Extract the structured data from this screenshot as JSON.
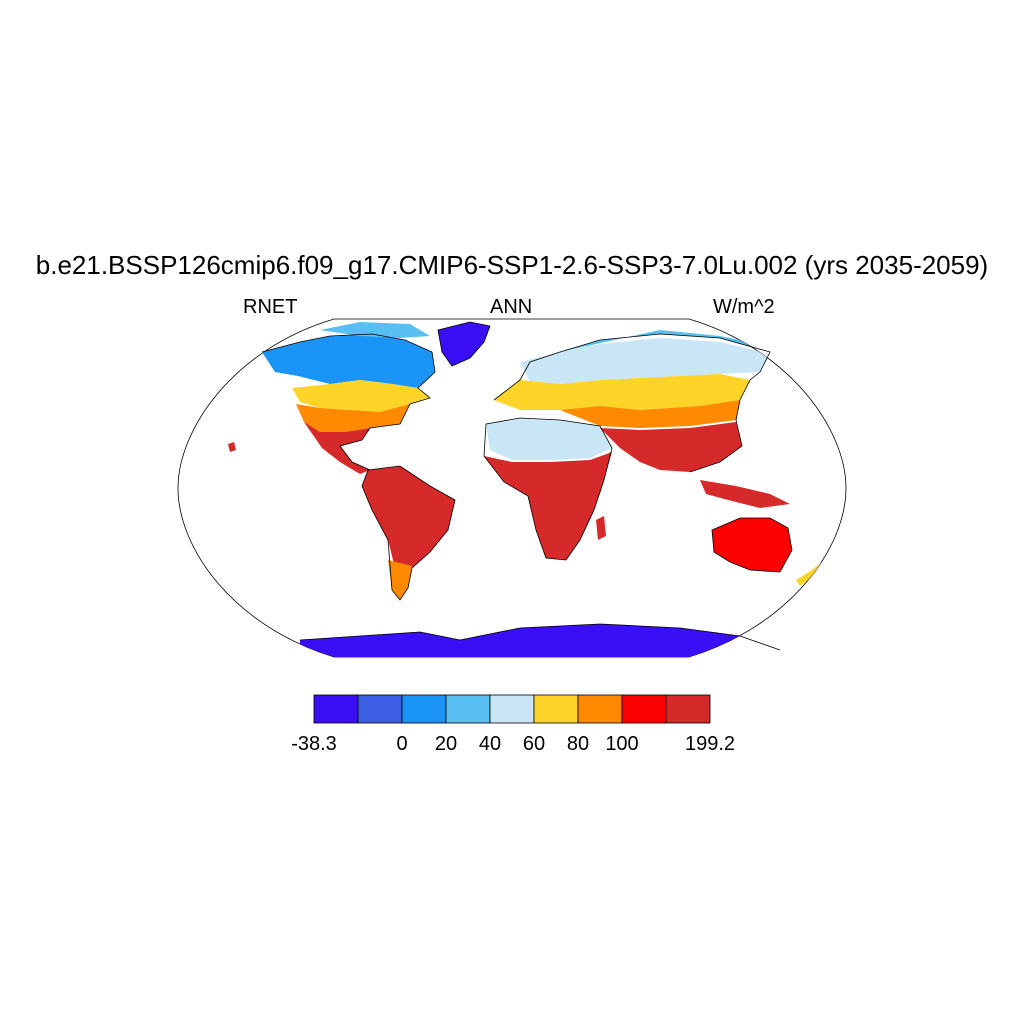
{
  "title": "b.e21.BSSP126cmip6.f09_g17.CMIP6-SSP1-2.6-SSP3-7.0Lu.002 (yrs 2035-2059)",
  "variable": "RNET",
  "season": "ANN",
  "units": "W/m^2",
  "colorbar": {
    "colors": [
      "#3a0ff5",
      "#3c5fe6",
      "#1b94f7",
      "#58bff2",
      "#c9e6f7",
      "#ffd428",
      "#ff8a00",
      "#fd0000",
      "#d62a2a"
    ],
    "tick_labels": [
      "-38.3",
      "0",
      "20",
      "40",
      "60",
      "80",
      "100",
      "199.2"
    ],
    "levels": [
      -38.3,
      0,
      20,
      40,
      60,
      80,
      100,
      199.2
    ]
  },
  "map": {
    "projection": "Robinson",
    "fields": [
      {
        "region": "Greenland",
        "color": "#3a0ff5"
      },
      {
        "region": "Antarctica",
        "color": "#3a0ff5"
      },
      {
        "region": "North America high latitudes",
        "color": "#58bff2"
      },
      {
        "region": "North America mid latitudes",
        "color": "#ffd428"
      },
      {
        "region": "North America southeast",
        "color": "#ff8a00"
      },
      {
        "region": "Central America",
        "color": "#d62a2a"
      },
      {
        "region": "South America",
        "color": "#d62a2a"
      },
      {
        "region": "Patagonia",
        "color": "#ff8a00"
      },
      {
        "region": "Europe",
        "color": "#ffd428"
      },
      {
        "region": "Northern Eurasia",
        "color": "#c9e6f7"
      },
      {
        "region": "Sahara",
        "color": "#c9e6f7"
      },
      {
        "region": "Africa",
        "color": "#d62a2a"
      },
      {
        "region": "South Asia",
        "color": "#d62a2a"
      },
      {
        "region": "Australia",
        "color": "#fd0000"
      }
    ]
  }
}
